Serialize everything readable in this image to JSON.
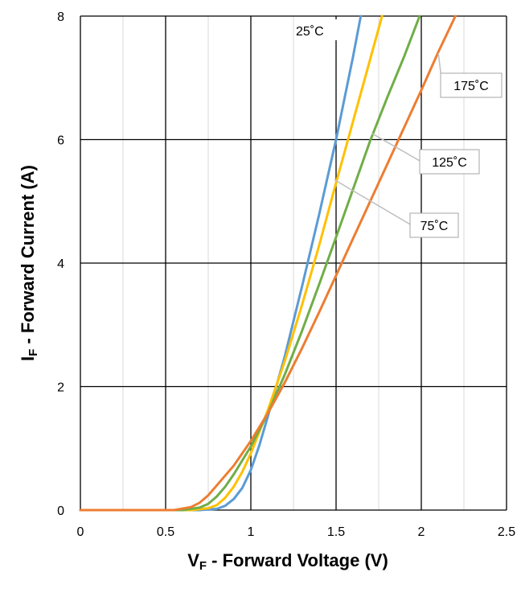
{
  "chart_data": {
    "type": "line",
    "title": "",
    "xlabel": {
      "main": "V",
      "sub": "F",
      "rest": " - Forward Voltage (V)"
    },
    "ylabel": {
      "main": "I",
      "sub": "F",
      "rest": " - Forward Current (A)"
    },
    "xlim": [
      0,
      2.5
    ],
    "ylim": [
      0,
      8
    ],
    "x_ticks": [
      0,
      0.5,
      1,
      1.5,
      2,
      2.5
    ],
    "x_tick_labels": [
      "0",
      "0.5",
      "1",
      "1.5",
      "2",
      "2.5"
    ],
    "y_ticks": [
      0,
      2,
      4,
      6,
      8
    ],
    "y_tick_labels": [
      "0",
      "2",
      "4",
      "6",
      "8"
    ],
    "x_minor_gridlines": [
      0.25,
      0.75,
      1.25,
      1.75,
      2.25
    ],
    "grid": true,
    "legend": "none",
    "series": [
      {
        "name": "25°C",
        "color": "#5b9bd5",
        "points": [
          [
            0,
            0
          ],
          [
            0.7,
            0
          ],
          [
            0.8,
            0.02
          ],
          [
            0.85,
            0.07
          ],
          [
            0.9,
            0.18
          ],
          [
            0.95,
            0.36
          ],
          [
            1.0,
            0.65
          ],
          [
            1.05,
            1.05
          ],
          [
            1.1,
            1.52
          ],
          [
            1.2,
            2.5
          ],
          [
            1.3,
            3.62
          ],
          [
            1.4,
            4.78
          ],
          [
            1.5,
            6.0
          ],
          [
            1.6,
            7.35
          ],
          [
            1.645,
            8.0
          ]
        ]
      },
      {
        "name": "75°C",
        "color": "#ffc000",
        "points": [
          [
            0,
            0
          ],
          [
            0.65,
            0
          ],
          [
            0.75,
            0.03
          ],
          [
            0.8,
            0.08
          ],
          [
            0.85,
            0.2
          ],
          [
            0.9,
            0.38
          ],
          [
            0.95,
            0.62
          ],
          [
            1.0,
            0.92
          ],
          [
            1.1,
            1.62
          ],
          [
            1.2,
            2.42
          ],
          [
            1.3,
            3.32
          ],
          [
            1.4,
            4.28
          ],
          [
            1.5,
            5.3
          ],
          [
            1.6,
            6.3
          ],
          [
            1.7,
            7.3
          ],
          [
            1.77,
            8.0
          ]
        ]
      },
      {
        "name": "125°C",
        "color": "#70ad47",
        "points": [
          [
            0,
            0
          ],
          [
            0.6,
            0
          ],
          [
            0.7,
            0.04
          ],
          [
            0.75,
            0.1
          ],
          [
            0.8,
            0.22
          ],
          [
            0.85,
            0.38
          ],
          [
            0.9,
            0.58
          ],
          [
            1.0,
            1.03
          ],
          [
            1.1,
            1.57
          ],
          [
            1.2,
            2.2
          ],
          [
            1.3,
            2.9
          ],
          [
            1.4,
            3.65
          ],
          [
            1.5,
            4.42
          ],
          [
            1.6,
            5.2
          ],
          [
            1.7,
            5.98
          ],
          [
            1.8,
            6.68
          ],
          [
            1.9,
            7.35
          ],
          [
            1.99,
            8.0
          ]
        ]
      },
      {
        "name": "175°C",
        "color": "#ed7d31",
        "points": [
          [
            0,
            0
          ],
          [
            0.55,
            0
          ],
          [
            0.65,
            0.05
          ],
          [
            0.7,
            0.12
          ],
          [
            0.75,
            0.24
          ],
          [
            0.8,
            0.4
          ],
          [
            0.9,
            0.72
          ],
          [
            1.0,
            1.12
          ],
          [
            1.1,
            1.57
          ],
          [
            1.2,
            2.07
          ],
          [
            1.3,
            2.62
          ],
          [
            1.4,
            3.2
          ],
          [
            1.5,
            3.8
          ],
          [
            1.6,
            4.4
          ],
          [
            1.7,
            5.0
          ],
          [
            1.8,
            5.6
          ],
          [
            1.9,
            6.2
          ],
          [
            2.0,
            6.8
          ],
          [
            2.1,
            7.42
          ],
          [
            2.2,
            8.0
          ]
        ]
      }
    ],
    "annotations": [
      {
        "name": "25°C",
        "label": "25˚C",
        "boxed": false,
        "leader": false
      },
      {
        "name": "75°C",
        "label": "75˚C",
        "boxed": true,
        "leader": true,
        "target": [
          1.49,
          5.35
        ]
      },
      {
        "name": "125°C",
        "label": "125˚C",
        "boxed": true,
        "leader": true,
        "target": [
          1.71,
          6.1
        ]
      },
      {
        "name": "175°C",
        "label": "175˚C",
        "boxed": true,
        "leader": true,
        "target": [
          2.1,
          7.4
        ]
      }
    ],
    "colors": {
      "major_grid": "#000000",
      "minor_grid": "#d9d9d9",
      "annotation_border": "#a6a6a6",
      "leader": "#bfbfbf"
    }
  }
}
